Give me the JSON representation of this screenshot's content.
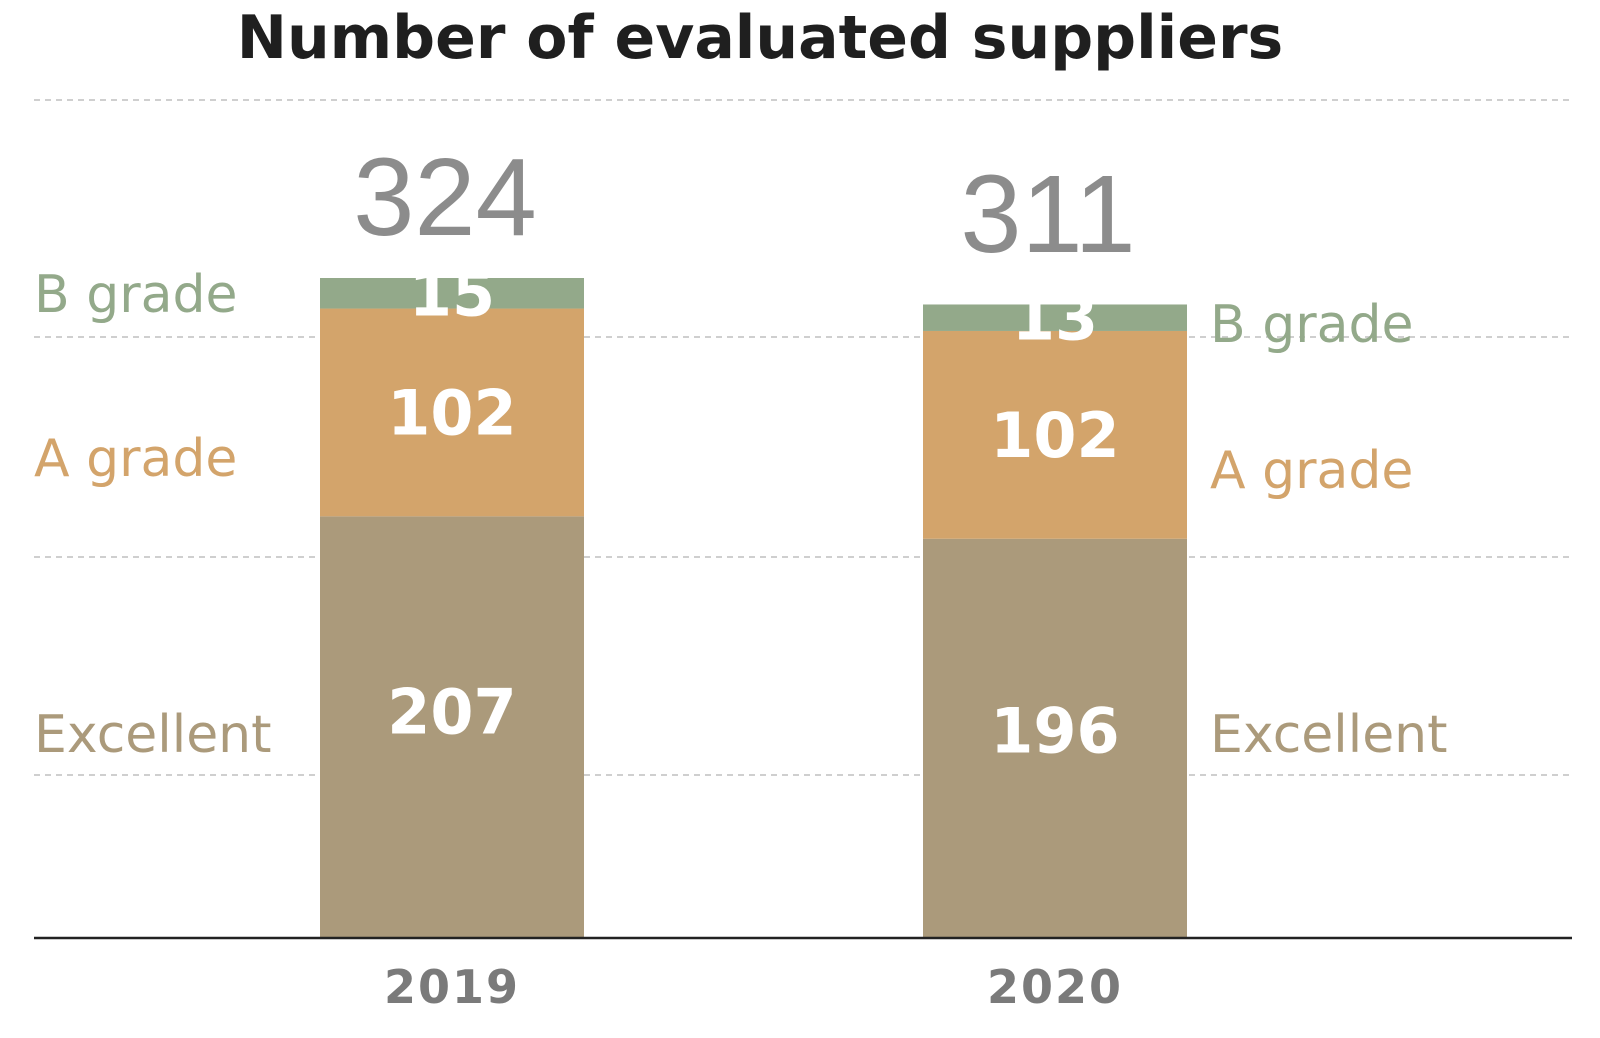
{
  "chart_data": {
    "type": "bar",
    "stacked": true,
    "title": "Number of evaluated suppliers",
    "categories": [
      "2019",
      "2020"
    ],
    "totals": [
      "324",
      "311"
    ],
    "series": [
      {
        "name": "Excellent",
        "values": [
          207,
          196
        ],
        "color": "#ab9a7b"
      },
      {
        "name": "A grade",
        "values": [
          102,
          102
        ],
        "color": "#d3a46b"
      },
      {
        "name": "B grade",
        "values": [
          15,
          13
        ],
        "color": "#93a98a"
      }
    ],
    "ylim": [
      0,
      324
    ],
    "grid": true,
    "legend": "inline labels beside bars"
  }
}
